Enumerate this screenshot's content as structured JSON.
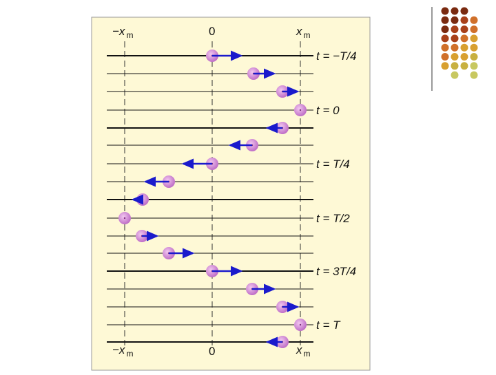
{
  "axis_top": {
    "left": {
      "symbol": "−x",
      "sub": "m"
    },
    "center": "0",
    "right": {
      "symbol": "x",
      "sub": "m"
    }
  },
  "axis_bottom": {
    "left": {
      "symbol": "−x",
      "sub": "m"
    },
    "center": "0",
    "right": {
      "symbol": "x",
      "sub": "m"
    }
  },
  "time_labels": [
    "t = −T/4",
    "t = 0",
    "t = T/4",
    "t = T/2",
    "t = 3T/4",
    "t = T"
  ]
}
